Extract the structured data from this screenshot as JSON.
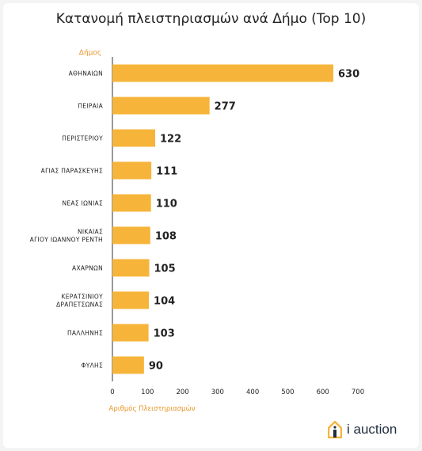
{
  "chart_data": {
    "type": "bar",
    "orientation": "horizontal",
    "title": "Κατανομή πλειστηριασμών ανά Δήμο (Top 10)",
    "ylabel": "Δήμος",
    "xlabel": "Αριθμός Πλειστηριασμών",
    "categories": [
      "ΑΘΗΝΑΙΩΝ",
      "ΠΕΙΡΑΙΑ",
      "ΠΕΡΙΣΤΕΡΙΟΥ",
      "ΑΓΙΑΣ ΠΑΡΑΣΚΕΥΗΣ",
      "ΝΕΑΣ ΙΩΝΙΑΣ",
      "ΝΙΚΑΙΑΣ\nΑΓΙΟΥ ΙΩΑΝΝΟΥ ΡΕΝΤΗ",
      "ΑΧΑΡΝΩΝ",
      "ΚΕΡΑΤΣΙΝΙΟΥ\nΔΡΑΠΕΤΣΩΝΑΣ",
      "ΠΑΛΛΗΝΗΣ",
      "ΦΥΛΗΣ"
    ],
    "values": [
      630,
      277,
      122,
      111,
      110,
      108,
      105,
      104,
      103,
      90
    ],
    "xlim": [
      0,
      700
    ],
    "xticks": [
      0,
      100,
      200,
      300,
      400,
      500,
      600,
      700
    ],
    "grid": false,
    "bar_color": "#f6b53a",
    "axis_label_color": "#e8972a"
  },
  "brand": {
    "name": "i auction",
    "logo_icon": "house-icon"
  }
}
